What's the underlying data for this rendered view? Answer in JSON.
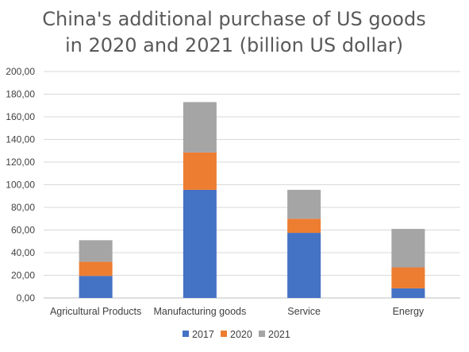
{
  "chart_data": {
    "type": "bar",
    "stacked": true,
    "title_lines": [
      "China's additional purchase of US goods",
      "in 2020 and 2021 (billion US dollar)"
    ],
    "categories": [
      "Agricultural Products",
      "Manufacturing goods",
      "Service",
      "Energy"
    ],
    "series": [
      {
        "name": "2017",
        "color": "#4472C4",
        "values": [
          19.5,
          95.5,
          57.5,
          8.5
        ]
      },
      {
        "name": "2020",
        "color": "#ED7D31",
        "values": [
          12.5,
          33.0,
          12.5,
          18.5
        ]
      },
      {
        "name": "2021",
        "color": "#A5A5A5",
        "values": [
          19.0,
          44.5,
          25.5,
          34.0
        ]
      }
    ],
    "ylim": [
      0,
      200
    ],
    "yticks": [
      "0,00",
      "20,00",
      "40,00",
      "60,00",
      "80,00",
      "100,00",
      "120,00",
      "140,00",
      "160,00",
      "180,00",
      "200,00"
    ],
    "grid": true,
    "legend_position": "bottom"
  }
}
